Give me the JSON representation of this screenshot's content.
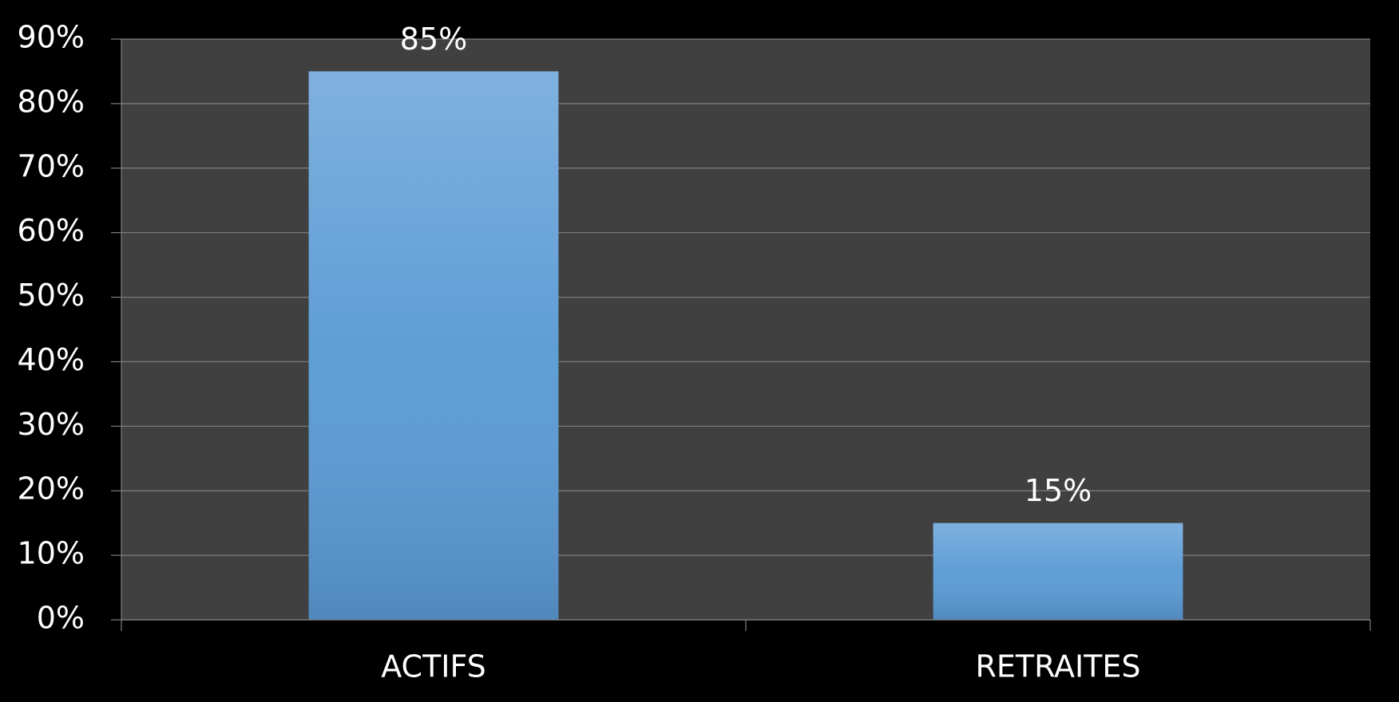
{
  "chart_data": {
    "type": "bar",
    "categories": [
      "ACTIFS",
      "RETRAITES"
    ],
    "values": [
      85,
      15
    ],
    "value_labels": [
      "85%",
      "15%"
    ],
    "color": "#5b9bd5",
    "ylim": [
      0,
      90
    ],
    "yticks": [
      {
        "value": 0,
        "label": "0%"
      },
      {
        "value": 10,
        "label": "10%"
      },
      {
        "value": 20,
        "label": "20%"
      },
      {
        "value": 30,
        "label": "30%"
      },
      {
        "value": 40,
        "label": "40%"
      },
      {
        "value": 50,
        "label": "50%"
      },
      {
        "value": 60,
        "label": "60%"
      },
      {
        "value": 70,
        "label": "70%"
      },
      {
        "value": 80,
        "label": "80%"
      },
      {
        "value": 90,
        "label": "90%"
      }
    ],
    "grid": true
  }
}
